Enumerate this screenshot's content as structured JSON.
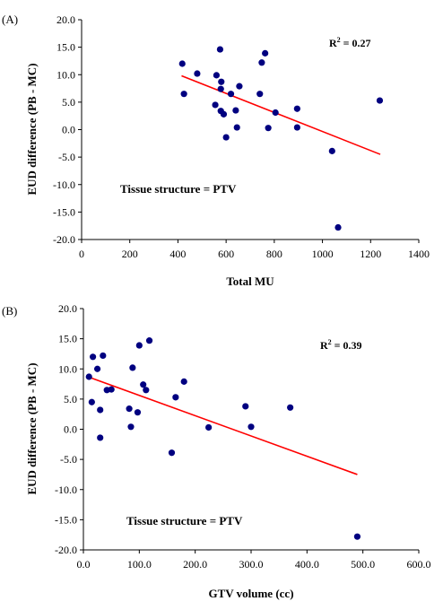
{
  "chart_data": [
    {
      "type": "scatter",
      "panel_label": "(A)",
      "xlabel": "Total MU",
      "ylabel": "EUD difference (PB - MC)",
      "xlim": [
        0,
        1400
      ],
      "ylim": [
        -20,
        20
      ],
      "x_ticks": [
        "0",
        "200",
        "400",
        "600",
        "800",
        "1000",
        "1200",
        "1400"
      ],
      "y_ticks": [
        "20.0",
        "15.0",
        "10.0",
        "5.0",
        "0.0",
        "-5.0",
        "-10.0",
        "-15.0",
        "-20.0"
      ],
      "annotation": "Tissue structure = PTV",
      "r2_label": "R",
      "r2_sup": "2",
      "r2_value": " = 0.27",
      "trendline": {
        "x": [
          415,
          1240
        ],
        "y": [
          9.8,
          -4.5
        ],
        "color": "#ff0000"
      },
      "marker_color": "#000080",
      "points": [
        {
          "x": 418,
          "y": 12.0
        },
        {
          "x": 425,
          "y": 6.5
        },
        {
          "x": 480,
          "y": 10.2
        },
        {
          "x": 560,
          "y": 9.9
        },
        {
          "x": 555,
          "y": 4.5
        },
        {
          "x": 575,
          "y": 14.6
        },
        {
          "x": 578,
          "y": 3.4
        },
        {
          "x": 580,
          "y": 8.7
        },
        {
          "x": 578,
          "y": 7.4
        },
        {
          "x": 590,
          "y": 2.8
        },
        {
          "x": 600,
          "y": -1.4
        },
        {
          "x": 620,
          "y": 6.5
        },
        {
          "x": 640,
          "y": 3.5
        },
        {
          "x": 645,
          "y": 0.4
        },
        {
          "x": 655,
          "y": 7.9
        },
        {
          "x": 740,
          "y": 6.5
        },
        {
          "x": 748,
          "y": 12.2
        },
        {
          "x": 762,
          "y": 13.9
        },
        {
          "x": 775,
          "y": 0.3
        },
        {
          "x": 805,
          "y": 3.1
        },
        {
          "x": 895,
          "y": 3.8
        },
        {
          "x": 895,
          "y": 0.4
        },
        {
          "x": 1040,
          "y": -3.9
        },
        {
          "x": 1065,
          "y": -17.8
        },
        {
          "x": 1238,
          "y": 5.3
        }
      ]
    },
    {
      "type": "scatter",
      "panel_label": "(B)",
      "xlabel": "GTV volume (cc)",
      "ylabel": "EUD difference (PB - MC)",
      "xlim": [
        0,
        600
      ],
      "ylim": [
        -20,
        20
      ],
      "x_ticks": [
        "0.0",
        "100.0",
        "200.0",
        "300.0",
        "400.0",
        "500.0",
        "600.0"
      ],
      "y_ticks": [
        "20.0",
        "15.0",
        "10.0",
        "5.0",
        "0.0",
        "-5.0",
        "-10.0",
        "-15.0",
        "-20.0"
      ],
      "annotation": "Tissue structure = PTV",
      "r2_label": "R",
      "r2_sup": "2",
      "r2_value": " = 0.39",
      "trendline": {
        "x": [
          8,
          490
        ],
        "y": [
          8.7,
          -7.5
        ],
        "color": "#ff0000"
      },
      "marker_color": "#000080",
      "points": [
        {
          "x": 10,
          "y": 8.7
        },
        {
          "x": 15,
          "y": 4.5
        },
        {
          "x": 17,
          "y": 12.0
        },
        {
          "x": 25,
          "y": 10.0
        },
        {
          "x": 30,
          "y": 3.2
        },
        {
          "x": 30,
          "y": -1.4
        },
        {
          "x": 35,
          "y": 12.2
        },
        {
          "x": 42,
          "y": 6.5
        },
        {
          "x": 50,
          "y": 6.6
        },
        {
          "x": 82,
          "y": 3.4
        },
        {
          "x": 85,
          "y": 0.4
        },
        {
          "x": 88,
          "y": 10.2
        },
        {
          "x": 97,
          "y": 2.8
        },
        {
          "x": 100,
          "y": 13.9
        },
        {
          "x": 107,
          "y": 7.4
        },
        {
          "x": 112,
          "y": 6.5
        },
        {
          "x": 118,
          "y": 14.7
        },
        {
          "x": 158,
          "y": -3.9
        },
        {
          "x": 165,
          "y": 5.3
        },
        {
          "x": 180,
          "y": 7.9
        },
        {
          "x": 224,
          "y": 0.3
        },
        {
          "x": 290,
          "y": 3.8
        },
        {
          "x": 300,
          "y": 0.4
        },
        {
          "x": 370,
          "y": 3.6
        },
        {
          "x": 490,
          "y": -17.8
        }
      ]
    }
  ]
}
